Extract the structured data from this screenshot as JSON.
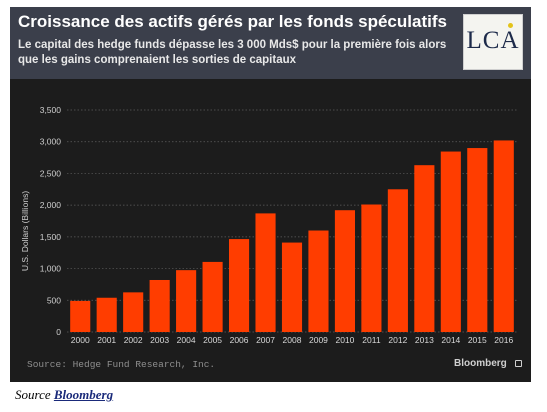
{
  "header": {
    "title": "Croissance des actifs gérés par les fonds spéculatifs",
    "subtitle": "Le capital des hedge funds dépasse les 3 000 Mds$ pour la première fois alors que les gains comprenaient les sorties de capitaux",
    "logo_text": "LCA"
  },
  "footer": {
    "source_note": "Source: Hedge Fund Research, Inc.",
    "brand": "Bloomberg"
  },
  "caption": {
    "prefix": "Source ",
    "link_text": "Bloomberg"
  },
  "colors": {
    "bar": "#ff3d00",
    "background": "#1c1c1c",
    "header": "#3b3f4b",
    "grid": "#5e5e5e"
  },
  "chart_data": {
    "type": "bar",
    "categories": [
      "2000",
      "2001",
      "2002",
      "2003",
      "2004",
      "2005",
      "2006",
      "2007",
      "2008",
      "2009",
      "2010",
      "2011",
      "2012",
      "2013",
      "2014",
      "2015",
      "2016"
    ],
    "values": [
      490,
      540,
      625,
      820,
      975,
      1105,
      1465,
      1870,
      1410,
      1600,
      1920,
      2010,
      2250,
      2630,
      2845,
      2900,
      3020
    ],
    "ylabel": "U.S. Dollars (Billions)",
    "ylim": [
      0,
      3500
    ],
    "yticks": [
      0,
      500,
      1000,
      1500,
      2000,
      2500,
      3000,
      3500
    ],
    "ytick_labels": [
      "0",
      "500",
      "1,000",
      "1,500",
      "2,000",
      "2,500",
      "3,000",
      "3,500"
    ],
    "grid": true
  }
}
